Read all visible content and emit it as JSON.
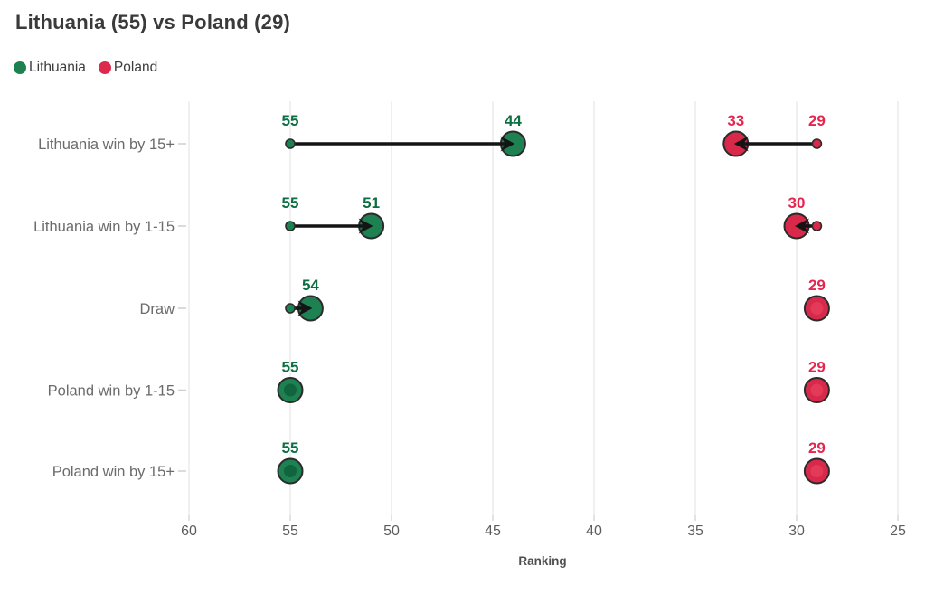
{
  "header": {
    "title": "Lithuania (55) vs Poland (29)"
  },
  "legend": {
    "items": [
      {
        "label": "Lithuania",
        "color": "#1e8152"
      },
      {
        "label": "Poland",
        "color": "#dc2a4d"
      }
    ]
  },
  "chart_data": {
    "type": "scatter",
    "subtype": "dumbbell-arrow",
    "title": "Lithuania (55) vs Poland (29)",
    "xlabel": "Ranking",
    "x_ticks": [
      60,
      55,
      50,
      45,
      40,
      35,
      30,
      25
    ],
    "xlim": [
      60.5,
      24.5
    ],
    "x_axis_reversed": true,
    "grid": true,
    "legend_position": "top-left",
    "colors": {
      "lithuania": {
        "fill": "#1e8152",
        "inner": "#10643e",
        "label": "#0c6e42"
      },
      "poland": {
        "fill": "#d8294b",
        "inner": "#e23a58",
        "label": "#e6254e"
      },
      "arrow": "#141414",
      "gridline": "#e7e7e7",
      "axis_text": "#5d5d5d",
      "category_text": "#6b6b6b"
    },
    "rows": [
      {
        "category": "Lithuania win by 15+",
        "lithuania": {
          "from": 55,
          "to": 44,
          "from_label": "55",
          "to_label": "44"
        },
        "poland": {
          "from": 29,
          "to": 33,
          "from_label": "29",
          "to_label": "33"
        }
      },
      {
        "category": "Lithuania win by 1-15",
        "lithuania": {
          "from": 55,
          "to": 51,
          "from_label": "55",
          "to_label": "51"
        },
        "poland": {
          "from": 29,
          "to": 30,
          "from_label": null,
          "to_label": "30"
        }
      },
      {
        "category": "Draw",
        "lithuania": {
          "from": 55,
          "to": 54,
          "from_label": null,
          "to_label": "54"
        },
        "poland": {
          "from": 29,
          "to": 29,
          "from_label": null,
          "to_label": "29"
        }
      },
      {
        "category": "Poland win by 1-15",
        "lithuania": {
          "from": 55,
          "to": 55,
          "from_label": null,
          "to_label": "55"
        },
        "poland": {
          "from": 29,
          "to": 29,
          "from_label": null,
          "to_label": "29"
        }
      },
      {
        "category": "Poland win by 15+",
        "lithuania": {
          "from": 55,
          "to": 55,
          "from_label": null,
          "to_label": "55"
        },
        "poland": {
          "from": 29,
          "to": 29,
          "from_label": null,
          "to_label": "29"
        }
      }
    ]
  }
}
